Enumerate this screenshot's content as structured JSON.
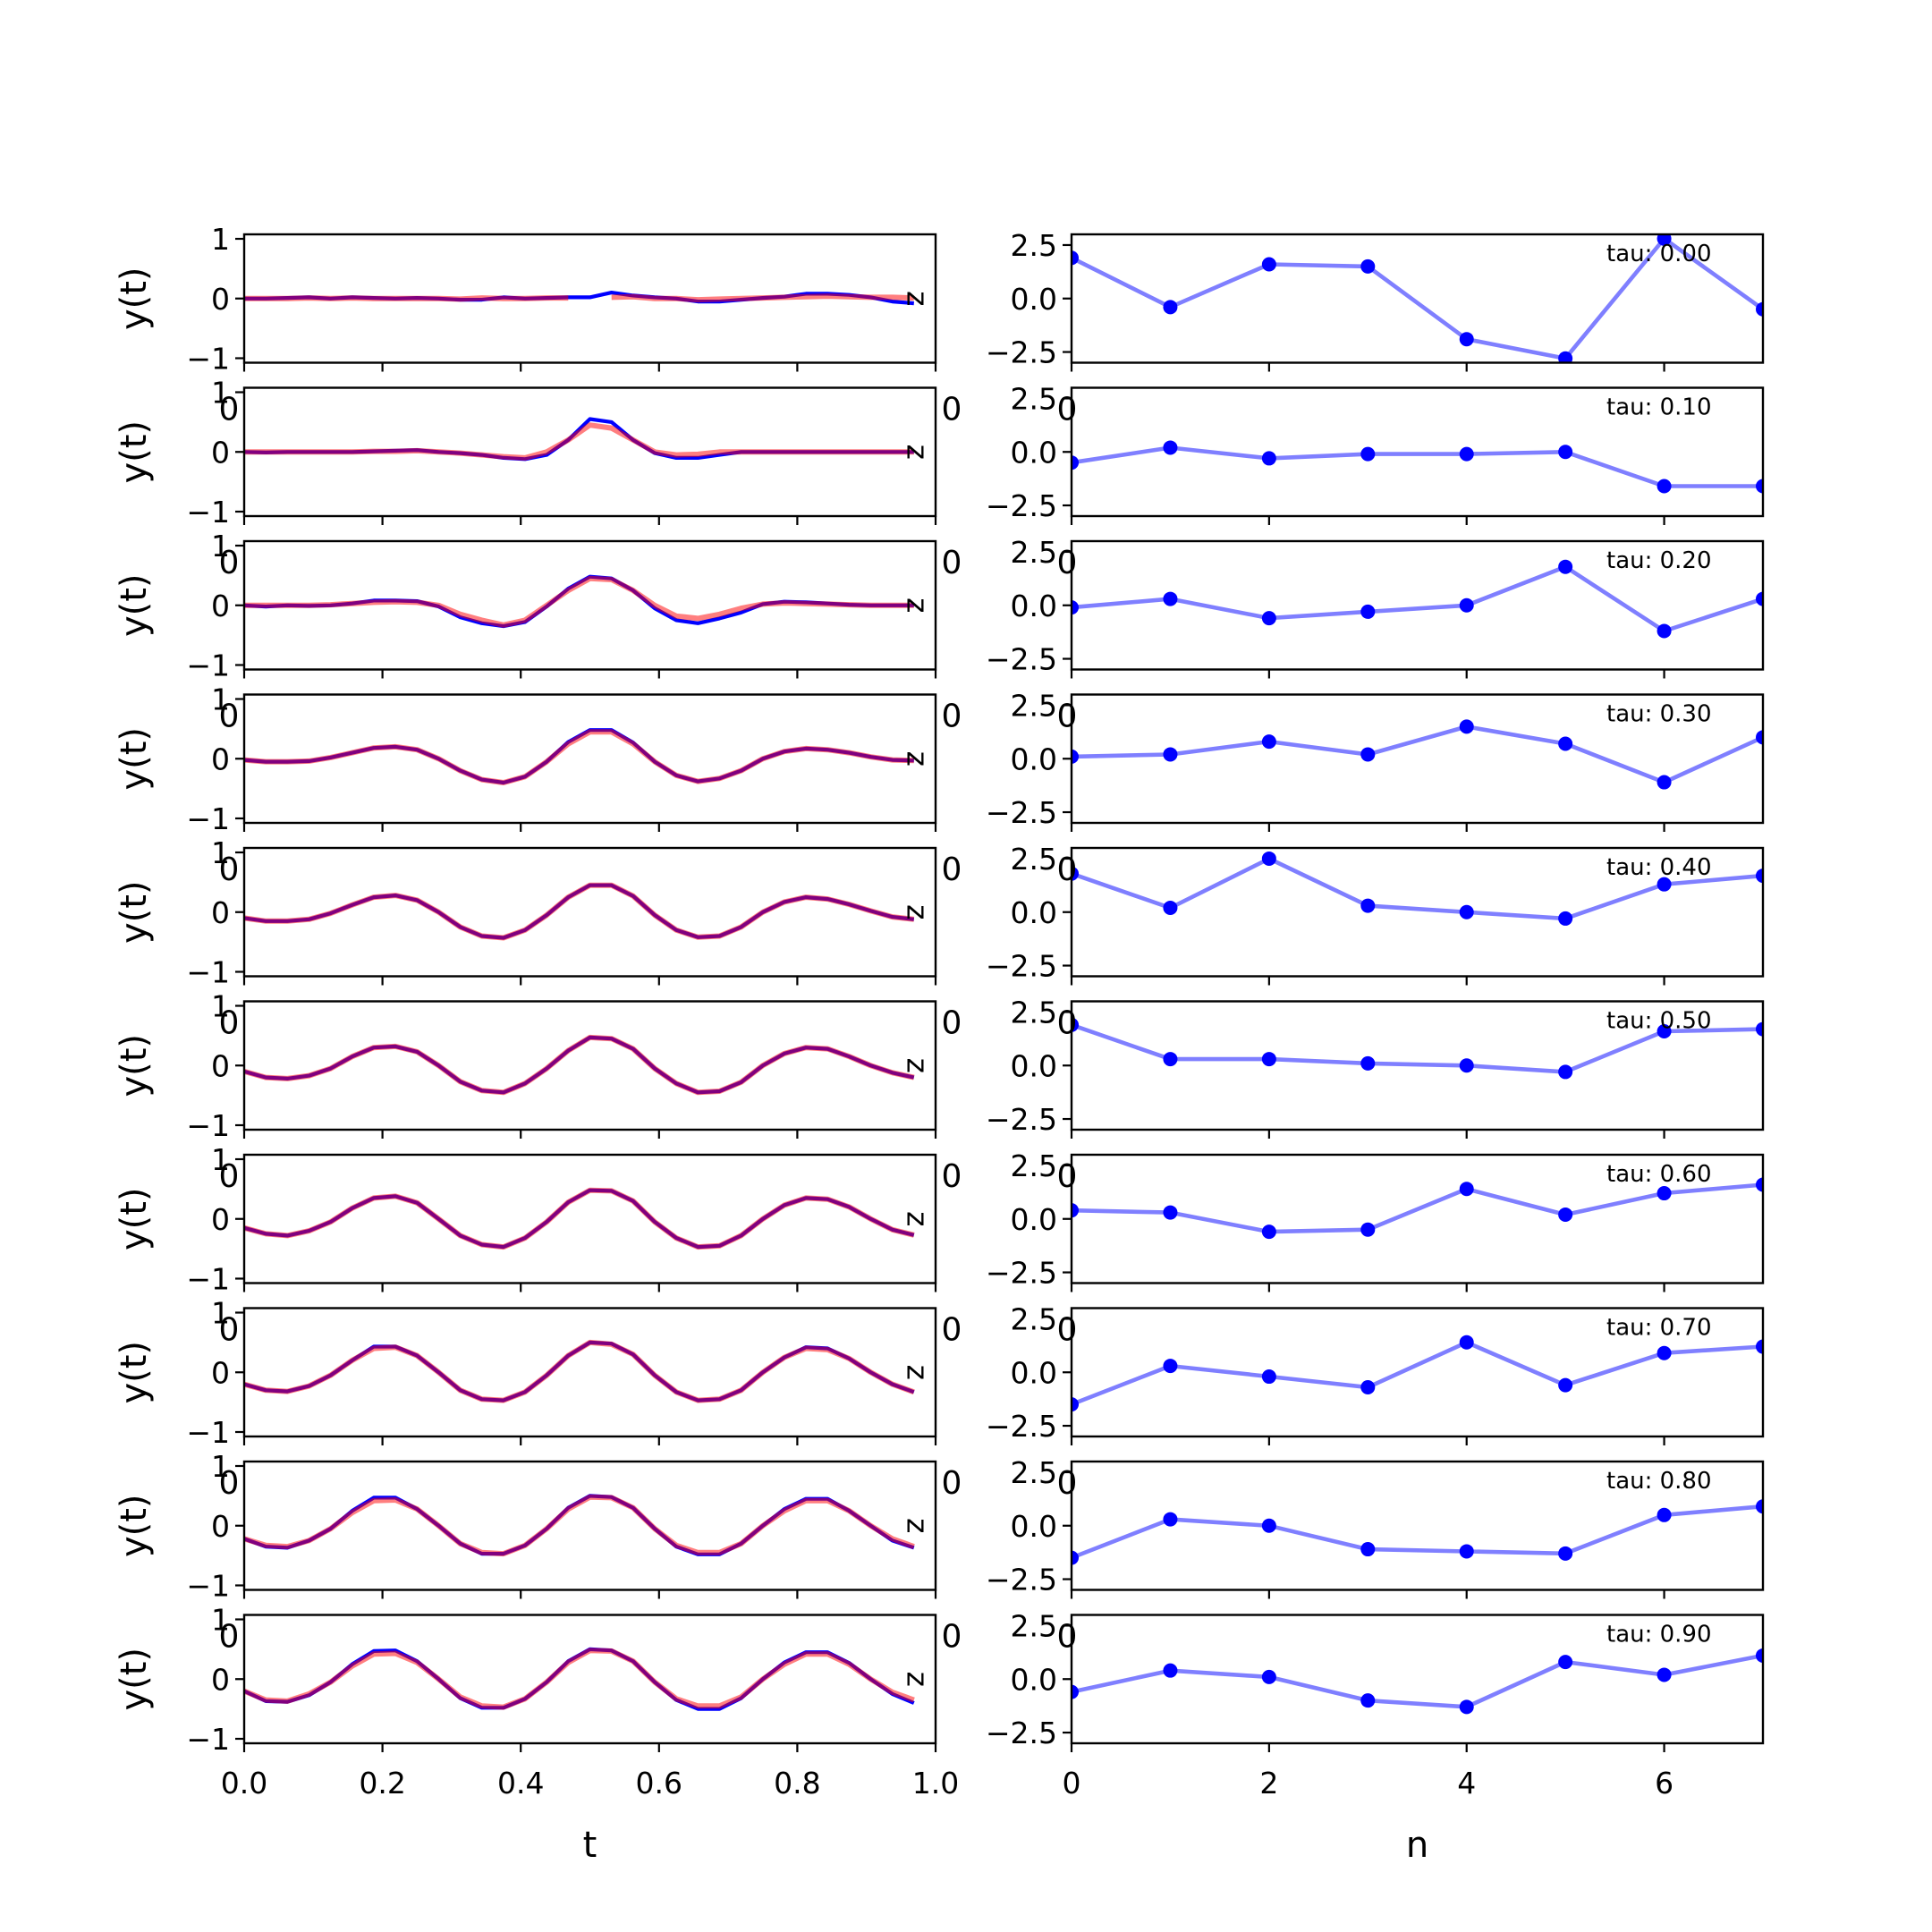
{
  "colors": {
    "red_series": "#ff0000",
    "blue_series": "#0000ff",
    "purple_overlap": "#800080"
  },
  "chart_data": [
    {
      "type": "line",
      "panel": "left",
      "xlabel": "t",
      "ylabel": "y(t)",
      "xlim": [
        0,
        1
      ],
      "ylim": [
        -1,
        1
      ],
      "xticks": [
        0.0,
        0.2,
        0.4,
        0.6,
        0.8,
        1.0
      ],
      "xtick_labels": [
        "0.0",
        "0.2",
        "0.4",
        "0.6",
        "0.8",
        "1.0"
      ],
      "yticks": [
        -1,
        0,
        1
      ],
      "ytick_labels": [
        "−1",
        "0",
        "1"
      ],
      "edge_label": "z",
      "ghost_tick": "0",
      "rows": [
        {
          "red": [
            0,
            0,
            0,
            0.01,
            0,
            0.01,
            0,
            0,
            0,
            0,
            -0.01,
            0.01,
            0,
            0,
            0.01,
            0.01,
            null,
            0.02,
            0.03,
            0,
            0,
            -0.02,
            -0.01,
            0,
            0.01,
            0.02,
            0.03,
            0.04,
            0.03,
            0.02,
            0.02,
            0.01
          ],
          "blue": [
            0,
            0,
            0.01,
            0.02,
            0,
            0.02,
            0.01,
            0,
            0.01,
            0,
            -0.02,
            -0.02,
            0.02,
            0,
            0.01,
            0.02,
            0.02,
            0.1,
            0.05,
            0.02,
            0,
            -0.05,
            -0.05,
            -0.02,
            0.01,
            0.03,
            0.08,
            0.08,
            0.06,
            0.02,
            -0.05,
            -0.08
          ]
        },
        {
          "red": [
            0,
            0,
            0,
            0,
            0,
            0,
            0.01,
            0.01,
            0.02,
            0,
            -0.02,
            -0.05,
            -0.08,
            -0.1,
            0,
            0.2,
            0.45,
            0.4,
            0.2,
            0,
            -0.05,
            -0.04,
            0,
            0,
            0,
            0,
            0,
            0,
            0,
            0,
            0,
            0
          ],
          "blue": [
            0,
            -0.01,
            0,
            0,
            0,
            0,
            0.01,
            0.02,
            0.03,
            0,
            -0.02,
            -0.05,
            -0.1,
            -0.12,
            -0.05,
            0.2,
            0.55,
            0.5,
            0.2,
            -0.02,
            -0.1,
            -0.1,
            -0.05,
            0,
            0,
            0,
            0,
            0,
            0,
            0,
            0,
            0
          ]
        },
        {
          "red": [
            0,
            0,
            0,
            0,
            0.01,
            0.03,
            0.05,
            0.06,
            0.05,
            0,
            -0.15,
            -0.25,
            -0.33,
            -0.25,
            0,
            0.25,
            0.45,
            0.43,
            0.25,
            0,
            -0.18,
            -0.22,
            -0.15,
            -0.05,
            0.02,
            0.04,
            0.03,
            0.02,
            0.01,
            0,
            0,
            0
          ],
          "blue": [
            0,
            -0.02,
            0,
            -0.01,
            0,
            0.03,
            0.08,
            0.08,
            0.07,
            -0.02,
            -0.2,
            -0.3,
            -0.35,
            -0.28,
            -0.02,
            0.28,
            0.48,
            0.45,
            0.25,
            -0.05,
            -0.25,
            -0.3,
            -0.22,
            -0.12,
            0.02,
            0.06,
            0.05,
            0.03,
            0.01,
            0,
            0,
            0
          ]
        },
        {
          "red": [
            -0.02,
            -0.05,
            -0.05,
            -0.04,
            0.02,
            0.1,
            0.18,
            0.2,
            0.15,
            0,
            -0.2,
            -0.35,
            -0.4,
            -0.3,
            -0.05,
            0.25,
            0.45,
            0.45,
            0.25,
            -0.05,
            -0.28,
            -0.38,
            -0.33,
            -0.2,
            0,
            0.12,
            0.17,
            0.15,
            0.1,
            0.03,
            -0.02,
            -0.03
          ],
          "blue": [
            -0.02,
            -0.05,
            -0.05,
            -0.04,
            0.02,
            0.1,
            0.18,
            0.2,
            0.15,
            0,
            -0.2,
            -0.35,
            -0.4,
            -0.3,
            -0.05,
            0.28,
            0.48,
            0.48,
            0.27,
            -0.05,
            -0.28,
            -0.38,
            -0.33,
            -0.2,
            0,
            0.12,
            0.17,
            0.15,
            0.1,
            0.03,
            -0.02,
            -0.03
          ]
        },
        {
          "red": [
            -0.1,
            -0.15,
            -0.15,
            -0.12,
            -0.02,
            0.12,
            0.25,
            0.28,
            0.2,
            0,
            -0.25,
            -0.4,
            -0.43,
            -0.3,
            -0.05,
            0.25,
            0.45,
            0.45,
            0.27,
            -0.05,
            -0.3,
            -0.42,
            -0.4,
            -0.25,
            0,
            0.17,
            0.25,
            0.22,
            0.13,
            0.02,
            -0.08,
            -0.12
          ],
          "blue": [
            -0.1,
            -0.15,
            -0.15,
            -0.12,
            -0.02,
            0.12,
            0.25,
            0.28,
            0.2,
            0,
            -0.25,
            -0.4,
            -0.43,
            -0.3,
            -0.05,
            0.25,
            0.45,
            0.45,
            0.27,
            -0.05,
            -0.3,
            -0.42,
            -0.4,
            -0.25,
            0,
            0.17,
            0.25,
            0.22,
            0.13,
            0.02,
            -0.08,
            -0.12
          ]
        },
        {
          "red": [
            -0.1,
            -0.2,
            -0.22,
            -0.17,
            -0.05,
            0.15,
            0.3,
            0.32,
            0.23,
            0,
            -0.27,
            -0.42,
            -0.45,
            -0.3,
            -0.05,
            0.25,
            0.47,
            0.45,
            0.28,
            -0.05,
            -0.3,
            -0.45,
            -0.43,
            -0.28,
            0,
            0.2,
            0.3,
            0.28,
            0.15,
            0,
            -0.12,
            -0.2
          ],
          "blue": [
            -0.1,
            -0.2,
            -0.22,
            -0.17,
            -0.05,
            0.15,
            0.3,
            0.32,
            0.23,
            0,
            -0.27,
            -0.42,
            -0.45,
            -0.3,
            -0.05,
            0.25,
            0.47,
            0.45,
            0.28,
            -0.05,
            -0.3,
            -0.45,
            -0.43,
            -0.28,
            0,
            0.2,
            0.3,
            0.28,
            0.15,
            0,
            -0.12,
            -0.2
          ]
        },
        {
          "red": [
            -0.15,
            -0.25,
            -0.28,
            -0.2,
            -0.05,
            0.18,
            0.35,
            0.38,
            0.27,
            0,
            -0.28,
            -0.43,
            -0.47,
            -0.32,
            -0.05,
            0.28,
            0.48,
            0.47,
            0.3,
            -0.05,
            -0.32,
            -0.47,
            -0.45,
            -0.28,
            0,
            0.23,
            0.35,
            0.33,
            0.2,
            0,
            -0.18,
            -0.27
          ],
          "blue": [
            -0.15,
            -0.25,
            -0.28,
            -0.2,
            -0.05,
            0.18,
            0.35,
            0.38,
            0.27,
            0,
            -0.28,
            -0.43,
            -0.47,
            -0.32,
            -0.05,
            0.28,
            0.48,
            0.47,
            0.3,
            -0.05,
            -0.32,
            -0.47,
            -0.45,
            -0.28,
            0,
            0.23,
            0.35,
            0.33,
            0.2,
            0,
            -0.18,
            -0.27
          ]
        },
        {
          "red": [
            -0.2,
            -0.3,
            -0.32,
            -0.23,
            -0.05,
            0.2,
            0.4,
            0.42,
            0.28,
            0,
            -0.3,
            -0.45,
            -0.47,
            -0.33,
            -0.05,
            0.28,
            0.5,
            0.47,
            0.3,
            -0.05,
            -0.33,
            -0.47,
            -0.45,
            -0.3,
            0,
            0.25,
            0.4,
            0.38,
            0.23,
            0,
            -0.2,
            -0.33
          ],
          "blue": [
            -0.2,
            -0.3,
            -0.32,
            -0.23,
            -0.05,
            0.2,
            0.43,
            0.43,
            0.28,
            0,
            -0.3,
            -0.45,
            -0.47,
            -0.33,
            -0.05,
            0.28,
            0.5,
            0.48,
            0.3,
            -0.05,
            -0.33,
            -0.47,
            -0.45,
            -0.3,
            0,
            0.25,
            0.42,
            0.4,
            0.23,
            0,
            -0.2,
            -0.33
          ]
        },
        {
          "red": [
            -0.22,
            -0.33,
            -0.35,
            -0.25,
            -0.05,
            0.22,
            0.42,
            0.43,
            0.28,
            0,
            -0.3,
            -0.45,
            -0.47,
            -0.33,
            -0.05,
            0.28,
            0.48,
            0.47,
            0.3,
            -0.05,
            -0.33,
            -0.45,
            -0.45,
            -0.3,
            0,
            0.25,
            0.42,
            0.42,
            0.25,
            0,
            -0.22,
            -0.35
          ],
          "blue": [
            -0.22,
            -0.35,
            -0.37,
            -0.25,
            -0.05,
            0.25,
            0.47,
            0.47,
            0.28,
            0,
            -0.3,
            -0.47,
            -0.47,
            -0.33,
            -0.05,
            0.3,
            0.5,
            0.48,
            0.3,
            -0.05,
            -0.35,
            -0.48,
            -0.48,
            -0.3,
            0,
            0.28,
            0.45,
            0.45,
            0.25,
            0,
            -0.25,
            -0.37
          ]
        },
        {
          "red": [
            -0.2,
            -0.35,
            -0.37,
            -0.25,
            -0.05,
            0.22,
            0.42,
            0.43,
            0.28,
            0,
            -0.3,
            -0.45,
            -0.47,
            -0.33,
            -0.05,
            0.28,
            0.48,
            0.47,
            0.3,
            -0.05,
            -0.33,
            -0.45,
            -0.45,
            -0.3,
            0,
            0.25,
            0.42,
            0.42,
            0.25,
            0,
            -0.22,
            -0.35
          ],
          "blue": [
            -0.2,
            -0.37,
            -0.38,
            -0.27,
            -0.05,
            0.25,
            0.47,
            0.48,
            0.3,
            0,
            -0.32,
            -0.48,
            -0.48,
            -0.33,
            -0.05,
            0.3,
            0.5,
            0.48,
            0.3,
            -0.05,
            -0.35,
            -0.5,
            -0.5,
            -0.32,
            0,
            0.28,
            0.45,
            0.45,
            0.27,
            0,
            -0.25,
            -0.4
          ]
        }
      ]
    },
    {
      "type": "line",
      "panel": "right",
      "xlabel": "n",
      "xlim": [
        0,
        7
      ],
      "ylim": [
        -3,
        3
      ],
      "xticks": [
        0,
        2,
        4,
        6
      ],
      "xtick_labels": [
        "0",
        "2",
        "4",
        "6"
      ],
      "yticks": [
        2.5,
        0.0,
        -2.5
      ],
      "ytick_labels": [
        "2.5",
        "0.0",
        "−2.5"
      ],
      "ghost_tick": "0",
      "rows": [
        {
          "tau_label": "tau: 0.00",
          "values": [
            1.9,
            -0.4,
            1.6,
            1.5,
            -1.9,
            -2.8,
            2.8,
            -0.5
          ]
        },
        {
          "tau_label": "tau: 0.10",
          "values": [
            -0.5,
            0.2,
            -0.3,
            -0.1,
            -0.1,
            0.0,
            -1.6,
            -1.6
          ]
        },
        {
          "tau_label": "tau: 0.20",
          "values": [
            -0.1,
            0.3,
            -0.6,
            -0.3,
            0.0,
            1.8,
            -1.2,
            0.3
          ]
        },
        {
          "tau_label": "tau: 0.30",
          "values": [
            0.1,
            0.2,
            0.8,
            0.2,
            1.5,
            0.7,
            -1.1,
            1.0
          ]
        },
        {
          "tau_label": "tau: 0.40",
          "values": [
            1.8,
            0.2,
            2.5,
            0.3,
            0.0,
            -0.3,
            1.3,
            1.7
          ]
        },
        {
          "tau_label": "tau: 0.50",
          "values": [
            1.9,
            0.3,
            0.3,
            0.1,
            0.0,
            -0.3,
            1.6,
            1.7
          ]
        },
        {
          "tau_label": "tau: 0.60",
          "values": [
            0.4,
            0.3,
            -0.6,
            -0.5,
            1.4,
            0.2,
            1.2,
            1.6
          ]
        },
        {
          "tau_label": "tau: 0.70",
          "values": [
            -1.5,
            0.3,
            -0.2,
            -0.7,
            1.4,
            -0.6,
            0.9,
            1.2
          ]
        },
        {
          "tau_label": "tau: 0.80",
          "values": [
            -1.5,
            0.3,
            0.0,
            -1.1,
            -1.2,
            -1.3,
            0.5,
            0.9
          ]
        },
        {
          "tau_label": "tau: 0.90",
          "values": [
            -0.6,
            0.4,
            0.1,
            -1.0,
            -1.3,
            0.8,
            0.2,
            1.1
          ]
        }
      ]
    }
  ]
}
